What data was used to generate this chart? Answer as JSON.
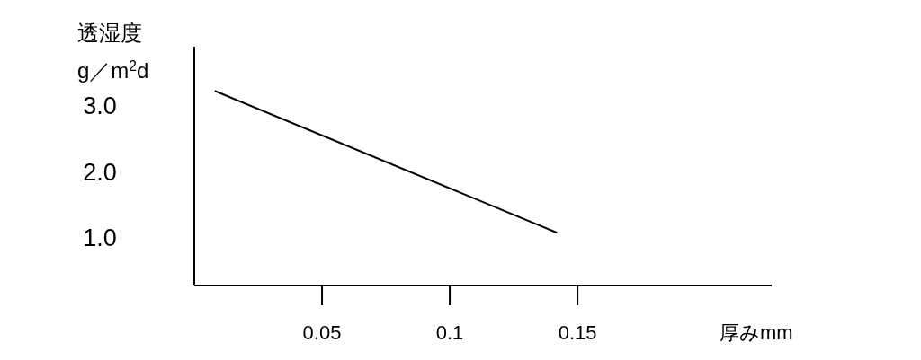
{
  "chart_data": {
    "type": "line",
    "title": "透湿度",
    "ylabel": "g／m$^{2}$d",
    "xlabel": "厚みmm",
    "x": [
      0.008,
      0.142
    ],
    "series": [
      {
        "color": "#000000",
        "values": [
          3.23,
          1.08
        ]
      }
    ],
    "xlim": [
      0,
      0.226
    ],
    "ylim": [
      0.28,
      3.9
    ],
    "xticks": [
      0.05,
      0.1,
      0.15
    ],
    "yticks": [
      {
        "value": 1,
        "label": "1.0"
      },
      {
        "value": 2,
        "label": "2.0"
      },
      {
        "value": 3,
        "label": "3.0"
      }
    ],
    "grid": false
  }
}
